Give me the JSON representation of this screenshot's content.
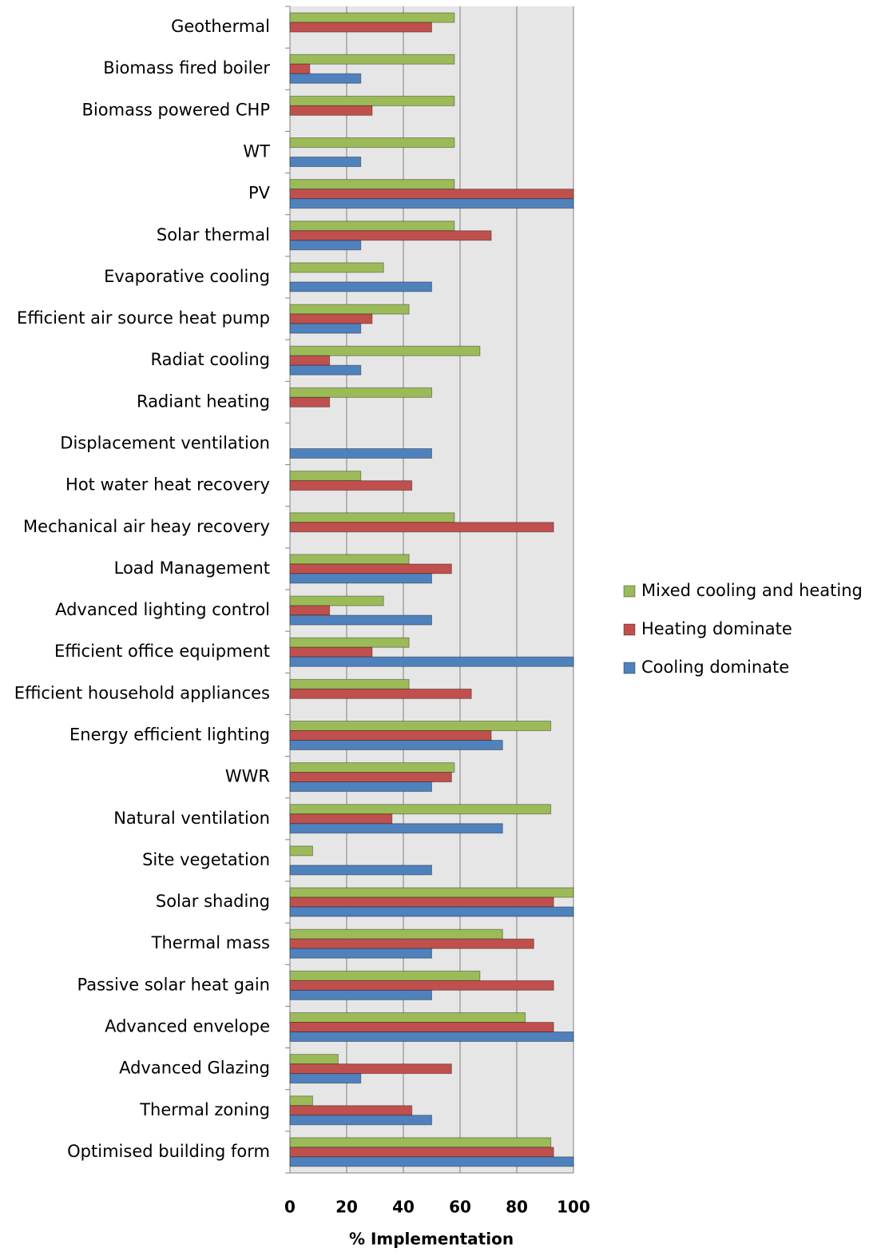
{
  "chart_data": {
    "type": "hbar",
    "x_label": "% Implementation",
    "categories": [
      "Geothermal",
      "Biomass fired boiler",
      "Biomass powered CHP",
      "WT",
      "PV",
      "Solar thermal",
      "Evaporative cooling",
      "Efficient air source heat pump",
      "Radiat cooling",
      "Radiant heating",
      "Displacement ventilation",
      "Hot water heat recovery",
      "Mechanical air heay recovery",
      "Load Management",
      "Advanced lighting control",
      "Efficient office equipment",
      "Efficient household appliances",
      "Energy efficient lighting",
      "WWR",
      "Natural ventilation",
      "Site vegetation",
      "Solar shading",
      "Thermal mass",
      "Passive solar heat gain",
      "Advanced envelope",
      "Advanced Glazing",
      "Thermal zoning",
      "Optimised building form"
    ],
    "series": [
      {
        "name": "Mixed cooling and heating",
        "color": "#9bbb59",
        "values": [
          58,
          58,
          58,
          58,
          58,
          58,
          33,
          42,
          67,
          50,
          0,
          25,
          58,
          42,
          33,
          42,
          42,
          92,
          58,
          92,
          8,
          100,
          75,
          67,
          83,
          17,
          8,
          92
        ]
      },
      {
        "name": "Heating dominate",
        "color": "#c0504d",
        "values": [
          50,
          7,
          29,
          0,
          100,
          71,
          0,
          29,
          14,
          14,
          0,
          43,
          93,
          57,
          14,
          29,
          64,
          71,
          57,
          36,
          0,
          93,
          86,
          93,
          93,
          57,
          43,
          93
        ]
      },
      {
        "name": "Cooling dominate",
        "color": "#4f81bd",
        "values": [
          0,
          25,
          0,
          25,
          100,
          25,
          50,
          25,
          25,
          0,
          50,
          0,
          0,
          50,
          50,
          100,
          0,
          75,
          50,
          75,
          50,
          100,
          50,
          50,
          100,
          25,
          50,
          100
        ]
      }
    ],
    "xlim": [
      0,
      100
    ],
    "xticks": [
      0,
      20,
      40,
      60,
      80,
      100
    ],
    "grid": true,
    "legend": "right"
  }
}
